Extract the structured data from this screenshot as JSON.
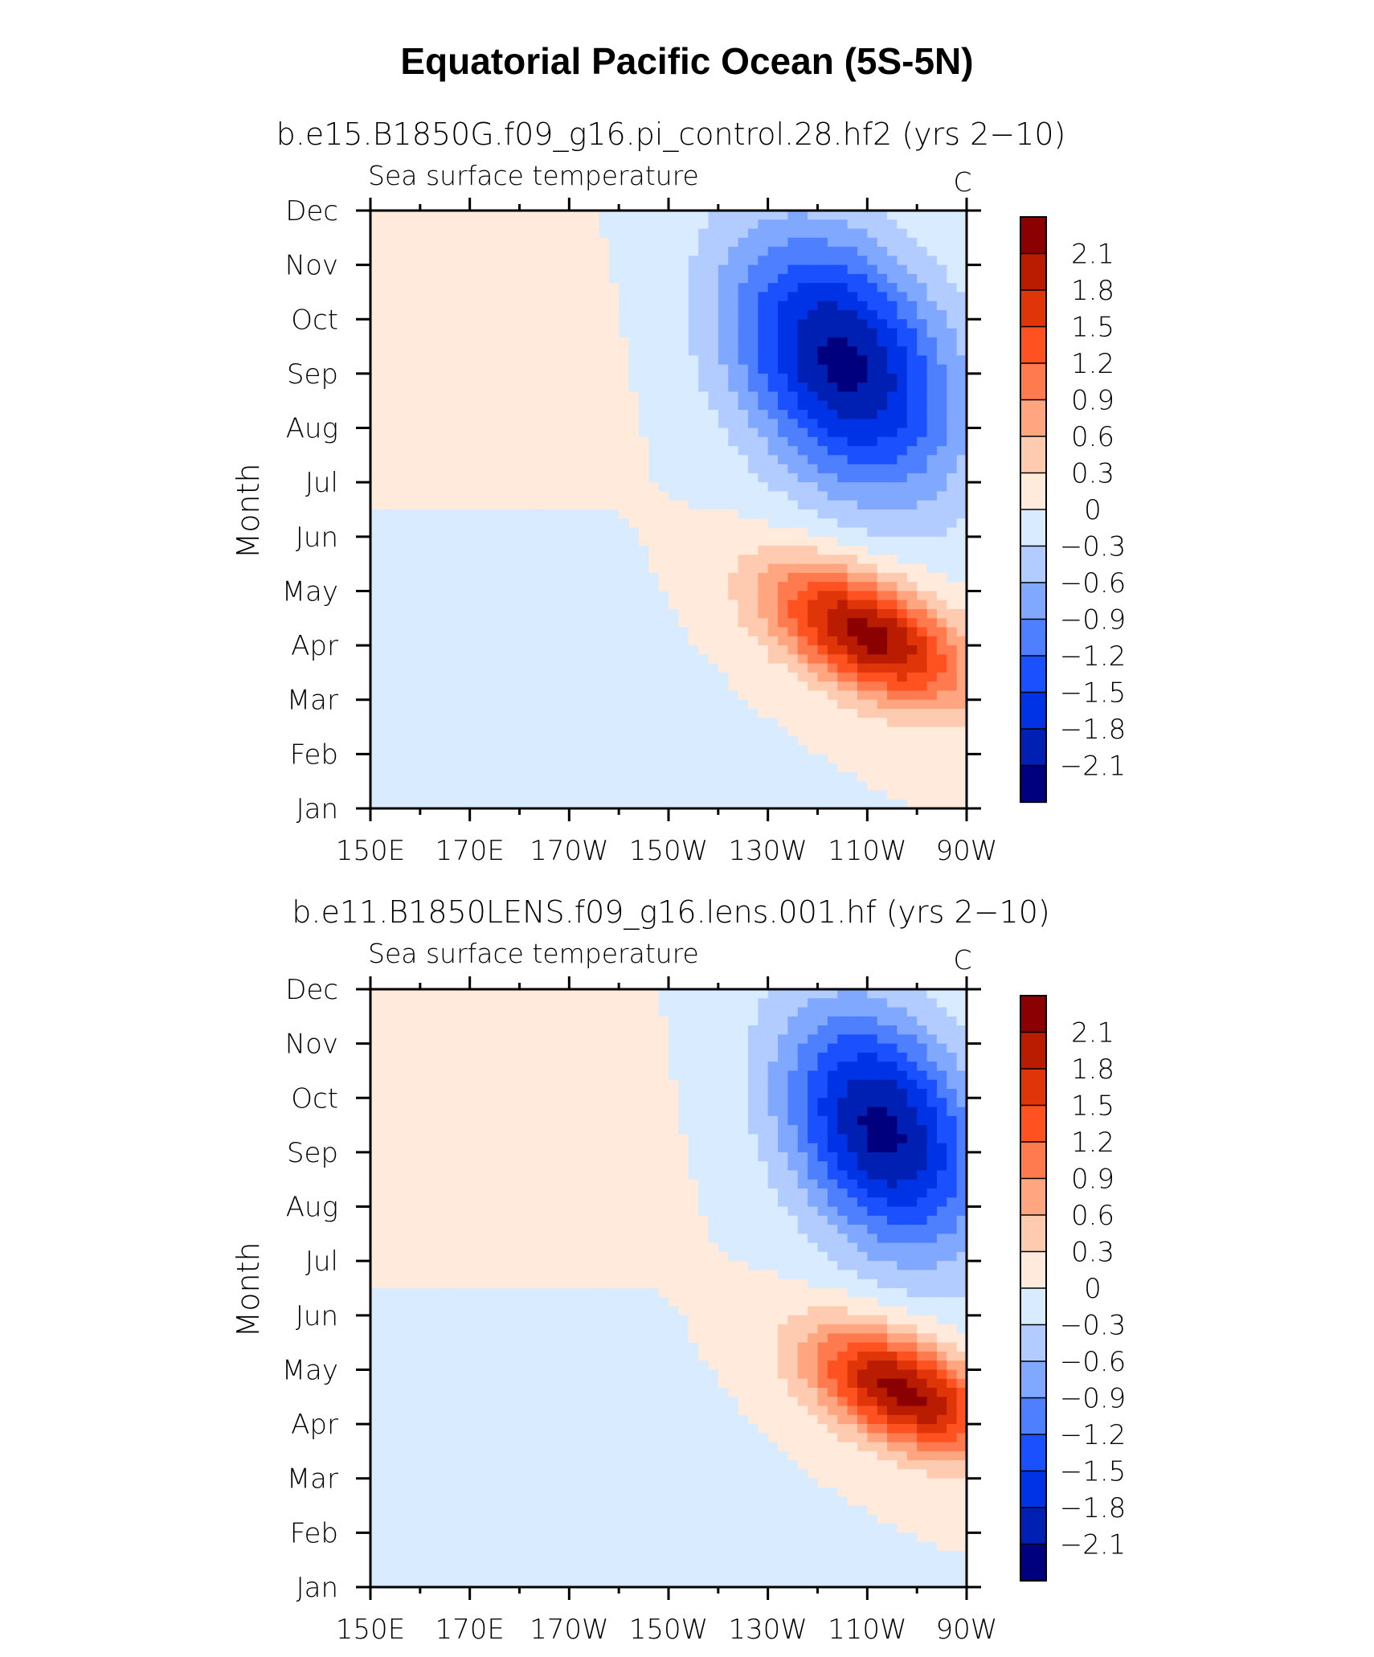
{
  "title": "Equatorial Pacific Ocean (5S-5N)",
  "colors": {
    "levels": [
      "#00007f",
      "#0020b4",
      "#0032e6",
      "#1a50ff",
      "#4d7fff",
      "#80a8ff",
      "#b3ccff",
      "#d9ebff",
      "#ffeadb",
      "#ffcbb0",
      "#ffa680",
      "#ff7a4f",
      "#ff5220",
      "#e03509",
      "#b91c00",
      "#8b0000"
    ]
  },
  "chart_data": [
    {
      "type": "contour",
      "title": "b.e15.B1850G.f09_g16.pi_control.28.hf2 (yrs 2−10)",
      "left_label": "Sea surface temperature",
      "units": "C",
      "xlabel": "",
      "ylabel": "Month",
      "x_ticks": [
        "150E",
        "170E",
        "170W",
        "150W",
        "130W",
        "110W",
        "90W"
      ],
      "x_range_deg_east": [
        150,
        270
      ],
      "y_ticks": [
        "Jan",
        "Feb",
        "Mar",
        "Apr",
        "May",
        "Jun",
        "Jul",
        "Aug",
        "Sep",
        "Oct",
        "Nov",
        "Dec"
      ],
      "colorbar_labels": [
        "2.1",
        "1.8",
        "1.5",
        "1.2",
        "0.9",
        "0.6",
        "0.3",
        "0",
        "−0.3",
        "−0.6",
        "−0.9",
        "−1.2",
        "−1.5",
        "−1.8",
        "−2.1"
      ],
      "contour_levels": [
        -2.1,
        -1.8,
        -1.5,
        -1.2,
        -0.9,
        -0.6,
        -0.3,
        0,
        0.3,
        0.6,
        0.9,
        1.2,
        1.5,
        1.8,
        2.1
      ],
      "field": {
        "positive_peak": {
          "value": 2.25,
          "lon": 250,
          "month": 3.2,
          "lon_spread": 14,
          "month_spread": 0.75,
          "tilt_months_per_deg": -0.0333
        },
        "negative_peak": {
          "value": -2.2,
          "lon": 245,
          "month": 8.2,
          "lon_spread": 16,
          "month_spread": 1.6,
          "tilt_months_per_deg": -0.035
        },
        "west_amplitude": 0.3
      }
    },
    {
      "type": "contour",
      "title": "b.e11.B1850LENS.f09_g16.lens.001.hf (yrs 2−10)",
      "left_label": "Sea surface temperature",
      "units": "C",
      "xlabel": "",
      "ylabel": "Month",
      "x_ticks": [
        "150E",
        "170E",
        "170W",
        "150W",
        "130W",
        "110W",
        "90W"
      ],
      "x_range_deg_east": [
        150,
        270
      ],
      "y_ticks": [
        "Jan",
        "Feb",
        "Mar",
        "Apr",
        "May",
        "Jun",
        "Jul",
        "Aug",
        "Sep",
        "Oct",
        "Nov",
        "Dec"
      ],
      "colorbar_labels": [
        "2.1",
        "1.8",
        "1.5",
        "1.2",
        "0.9",
        "0.6",
        "0.3",
        "0",
        "−0.3",
        "−0.6",
        "−0.9",
        "−1.2",
        "−1.5",
        "−1.8",
        "−2.1"
      ],
      "contour_levels": [
        -2.1,
        -1.8,
        -1.5,
        -1.2,
        -0.9,
        -0.6,
        -0.3,
        0,
        0.3,
        0.6,
        0.9,
        1.2,
        1.5,
        1.8,
        2.1
      ],
      "field": {
        "positive_peak": {
          "value": 2.25,
          "lon": 257,
          "month": 3.6,
          "lon_spread": 13,
          "month_spread": 0.7,
          "tilt_months_per_deg": -0.032
        },
        "negative_peak": {
          "value": -2.2,
          "lon": 253,
          "month": 8.4,
          "lon_spread": 14,
          "month_spread": 1.5,
          "tilt_months_per_deg": -0.035
        },
        "west_amplitude": 0.3
      }
    }
  ]
}
